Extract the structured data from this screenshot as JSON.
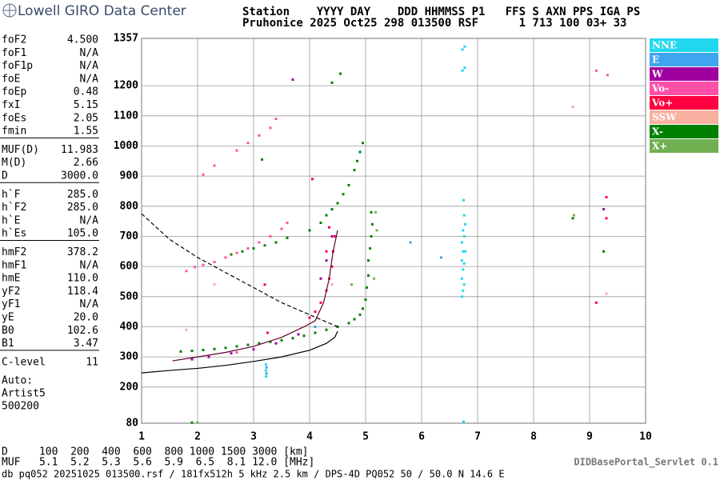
{
  "header": {
    "logo": "Lowell GIRO Data Center",
    "line1": "Station    YYYY DAY    DDD HHMMSS P1   FFS S AXN PPS IGA PS",
    "line2": "Pruhonice 2025 Oct25 298 013500 RSF      1 713 100 03+ 33"
  },
  "parameters": [
    [
      [
        "foF2",
        "4.500"
      ],
      [
        "foF1",
        "N/A"
      ],
      [
        "foF1p",
        "N/A"
      ],
      [
        "foE",
        "N/A"
      ],
      [
        "foEp",
        "0.48"
      ],
      [
        "fxI",
        "5.15"
      ],
      [
        "foEs",
        "2.05"
      ],
      [
        "fmin",
        "1.55"
      ]
    ],
    [
      [
        "MUF(D)",
        "11.983"
      ],
      [
        "M(D)",
        "2.66"
      ],
      [
        "D",
        "3000.0"
      ]
    ],
    [
      [
        "h`F",
        "285.0"
      ],
      [
        "h`F2",
        "285.0"
      ],
      [
        "h`E",
        "N/A"
      ],
      [
        "h`Es",
        "105.0"
      ]
    ],
    [
      [
        "hmF2",
        "378.2"
      ],
      [
        "hmF1",
        "N/A"
      ],
      [
        "hmE",
        "110.0"
      ],
      [
        "yF2",
        "118.4"
      ],
      [
        "yF1",
        "N/A"
      ],
      [
        "yE",
        "20.0"
      ],
      [
        "B0",
        "102.6"
      ],
      [
        "B1",
        "3.47"
      ]
    ],
    [
      [
        "C-level",
        "11"
      ]
    ]
  ],
  "autoscaling": [
    "Auto:",
    "Artist5",
    "500200"
  ],
  "muf_table": [
    "D     100  200  400  600  800 1000 1500 3000 [km]",
    "MUF   5.1  5.2  5.3  5.6  5.9  6.5  8.1 12.0 [MHz]"
  ],
  "servlet": "DIDBasePortal_Servlet 0.1",
  "footer": "db pq052 20251025 013500.rsf / 181fx512h 5 kHz 2.5 km / DPS-4D PQ052 50 / 50.0 N 14.6 E",
  "chart_data": {
    "type": "scatter",
    "grid": true,
    "xlim": [
      1,
      10
    ],
    "xticks": [
      1,
      2,
      3,
      4,
      5,
      6,
      7,
      8,
      9,
      10
    ],
    "ylim": [
      80,
      1357
    ],
    "yticks": [
      80,
      200,
      300,
      400,
      500,
      600,
      700,
      800,
      900,
      1000,
      1100,
      1200,
      1357
    ],
    "series": [
      {
        "name": "NNE",
        "color": "#22d8ee",
        "x": [
          6.72,
          6.72,
          6.72,
          6.72,
          6.74,
          6.74,
          6.74,
          6.74,
          6.76,
          6.76,
          6.76,
          6.76,
          6.78,
          6.78,
          6.73,
          6.77,
          6.73,
          6.77,
          3.22,
          3.22,
          3.22,
          6.75,
          6.75
        ],
        "values": [
          500,
          560,
          620,
          680,
          520,
          590,
          650,
          720,
          540,
          610,
          700,
          770,
          650,
          740,
          1250,
          1260,
          1320,
          1330,
          235,
          255,
          275,
          820,
          85
        ]
      },
      {
        "name": "E",
        "color": "#3ea6ee",
        "x": [
          3.23,
          3.23,
          5.8,
          6.35,
          4.1
        ],
        "values": [
          265,
          245,
          680,
          630,
          400
        ]
      },
      {
        "name": "W",
        "color": "#a000a0",
        "x": [
          1.9,
          2.2,
          2.6,
          3.0,
          3.4,
          3.8,
          4.2,
          4.3,
          4.4,
          9.25,
          3.7
        ],
        "values": [
          292,
          300,
          312,
          325,
          345,
          375,
          560,
          620,
          700,
          790,
          1220
        ]
      },
      {
        "name": "Vo-",
        "color": "#ff50a8",
        "x": [
          1.8,
          1.95,
          2.1,
          2.3,
          2.5,
          2.7,
          2.9,
          3.1,
          3.3,
          3.5,
          3.6,
          2.1,
          2.3,
          2.7,
          2.9,
          3.1,
          3.3,
          3.4,
          9.12,
          9.32,
          2.7
        ],
        "values": [
          585,
          598,
          605,
          615,
          630,
          645,
          660,
          680,
          700,
          725,
          745,
          905,
          935,
          985,
          1010,
          1035,
          1060,
          1090,
          1250,
          1235,
          315
        ]
      },
      {
        "name": "Vo+",
        "color": "#ff0040",
        "x": [
          4.0,
          4.1,
          4.2,
          4.3,
          4.35,
          4.4,
          4.42,
          4.45,
          4.3,
          4.35,
          4.05,
          9.3,
          9.3,
          9.12,
          3.2,
          3.25
        ],
        "values": [
          430,
          450,
          480,
          520,
          560,
          600,
          650,
          700,
          650,
          730,
          890,
          760,
          830,
          480,
          540,
          380
        ]
      },
      {
        "name": "SSW",
        "color": "#f8b0a0",
        "x": [
          1.8,
          2.3,
          8.7,
          4.4,
          9.3
        ],
        "values": [
          390,
          540,
          1130,
          540,
          510
        ]
      },
      {
        "name": "X-",
        "color": "#008000",
        "x": [
          1.7,
          1.9,
          2.1,
          2.3,
          2.5,
          2.7,
          2.9,
          3.1,
          3.3,
          3.5,
          3.7,
          3.9,
          4.1,
          4.3,
          4.5,
          4.7,
          4.8,
          4.9,
          4.95,
          5.0,
          5.02,
          5.05,
          5.05,
          5.08,
          5.1,
          5.12,
          5.1,
          2.6,
          2.8,
          3.0,
          3.2,
          3.4,
          3.6,
          4.0,
          4.2,
          4.3,
          4.4,
          4.5,
          4.6,
          4.7,
          4.8,
          4.85,
          4.9,
          4.95,
          4.4,
          4.55,
          3.15,
          1.9,
          9.25,
          8.7
        ],
        "values": [
          318,
          320,
          323,
          326,
          330,
          335,
          340,
          345,
          350,
          355,
          362,
          370,
          380,
          390,
          400,
          412,
          425,
          440,
          460,
          490,
          530,
          570,
          620,
          660,
          700,
          740,
          780,
          640,
          650,
          660,
          670,
          680,
          695,
          720,
          745,
          770,
          790,
          810,
          840,
          870,
          920,
          950,
          980,
          1010,
          1210,
          1240,
          955,
          82,
          650,
          760
        ]
      },
      {
        "name": "X+",
        "color": "#70b050",
        "x": [
          5.15,
          5.2,
          5.18,
          8.72,
          2.0,
          4.75
        ],
        "values": [
          560,
          720,
          780,
          770,
          82,
          540
        ]
      },
      {
        "color": "#000000",
        "line": "solid",
        "x": [
          1,
          1.5,
          2,
          2.5,
          3,
          3.5,
          4,
          4.3,
          4.45,
          4.5
        ],
        "values": [
          247,
          255,
          262,
          272,
          285,
          300,
          322,
          345,
          365,
          385
        ]
      },
      {
        "color": "#000000",
        "line": "dashed",
        "x": [
          1,
          1.5,
          2,
          2.5,
          3,
          3.5,
          4,
          4.5
        ],
        "values": [
          775,
          690,
          630,
          580,
          530,
          480,
          440,
          400
        ]
      },
      {
        "color": "#600030",
        "line": "solid",
        "x": [
          1.55,
          2,
          2.5,
          3,
          3.5,
          3.9,
          4.1,
          4.25,
          4.35,
          4.42,
          4.5
        ],
        "values": [
          287,
          300,
          315,
          335,
          365,
          400,
          420,
          480,
          560,
          650,
          720
        ]
      }
    ]
  }
}
